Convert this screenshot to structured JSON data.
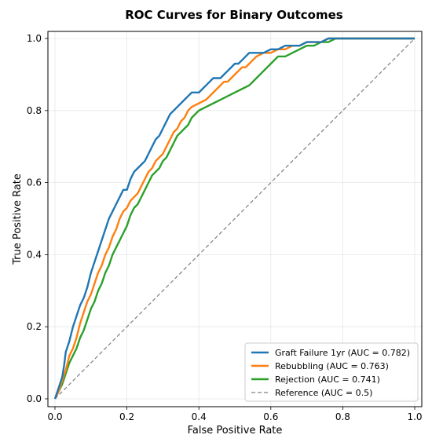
{
  "chart_data": {
    "type": "line",
    "title": "ROC Curves for Binary Outcomes",
    "xlabel": "False Positive Rate",
    "ylabel": "True Positive Rate",
    "xlim": [
      0.0,
      1.0
    ],
    "ylim": [
      0.0,
      1.0
    ],
    "xticks": [
      "0.0",
      "0.2",
      "0.4",
      "0.6",
      "0.8",
      "1.0"
    ],
    "yticks": [
      "0.0",
      "0.2",
      "0.4",
      "0.6",
      "0.8",
      "1.0"
    ],
    "grid": true,
    "legend_position": "lower-right",
    "series": [
      {
        "name": "Graft Failure 1yr (AUC = 0.782)",
        "color": "#1f77b4",
        "x": [
          0.0,
          0.01,
          0.02,
          0.025,
          0.03,
          0.04,
          0.05,
          0.06,
          0.07,
          0.08,
          0.09,
          0.1,
          0.11,
          0.12,
          0.13,
          0.14,
          0.15,
          0.16,
          0.17,
          0.18,
          0.19,
          0.2,
          0.21,
          0.22,
          0.23,
          0.24,
          0.25,
          0.26,
          0.27,
          0.28,
          0.29,
          0.3,
          0.31,
          0.32,
          0.33,
          0.34,
          0.35,
          0.36,
          0.37,
          0.38,
          0.4,
          0.41,
          0.42,
          0.43,
          0.44,
          0.45,
          0.46,
          0.47,
          0.48,
          0.49,
          0.5,
          0.51,
          0.52,
          0.53,
          0.54,
          0.56,
          0.58,
          0.6,
          0.62,
          0.64,
          0.66,
          0.68,
          0.7,
          0.72,
          0.74,
          0.76,
          0.78,
          0.8,
          1.0
        ],
        "y": [
          0.0,
          0.03,
          0.06,
          0.09,
          0.13,
          0.16,
          0.2,
          0.23,
          0.26,
          0.28,
          0.31,
          0.35,
          0.38,
          0.41,
          0.44,
          0.47,
          0.5,
          0.52,
          0.54,
          0.56,
          0.58,
          0.58,
          0.61,
          0.63,
          0.64,
          0.65,
          0.66,
          0.68,
          0.7,
          0.72,
          0.73,
          0.75,
          0.77,
          0.79,
          0.8,
          0.81,
          0.82,
          0.83,
          0.84,
          0.85,
          0.85,
          0.86,
          0.87,
          0.88,
          0.89,
          0.89,
          0.89,
          0.9,
          0.91,
          0.92,
          0.93,
          0.93,
          0.94,
          0.95,
          0.96,
          0.96,
          0.96,
          0.97,
          0.97,
          0.98,
          0.98,
          0.98,
          0.99,
          0.99,
          0.99,
          1.0,
          1.0,
          1.0,
          1.0
        ]
      },
      {
        "name": "Rebubbling (AUC = 0.763)",
        "color": "#ff7f0e",
        "x": [
          0.0,
          0.01,
          0.02,
          0.03,
          0.04,
          0.05,
          0.06,
          0.07,
          0.08,
          0.09,
          0.1,
          0.11,
          0.12,
          0.13,
          0.14,
          0.15,
          0.16,
          0.17,
          0.18,
          0.19,
          0.2,
          0.21,
          0.22,
          0.23,
          0.24,
          0.25,
          0.26,
          0.27,
          0.28,
          0.29,
          0.3,
          0.31,
          0.32,
          0.33,
          0.34,
          0.35,
          0.36,
          0.37,
          0.38,
          0.4,
          0.42,
          0.44,
          0.45,
          0.46,
          0.47,
          0.48,
          0.49,
          0.5,
          0.51,
          0.52,
          0.53,
          0.54,
          0.55,
          0.56,
          0.58,
          0.6,
          0.62,
          0.64,
          0.66,
          0.68,
          0.7,
          0.72,
          0.74,
          0.76,
          0.78,
          0.8,
          1.0
        ],
        "y": [
          0.0,
          0.02,
          0.05,
          0.08,
          0.12,
          0.14,
          0.17,
          0.21,
          0.24,
          0.27,
          0.29,
          0.32,
          0.35,
          0.37,
          0.4,
          0.42,
          0.45,
          0.47,
          0.5,
          0.52,
          0.53,
          0.55,
          0.56,
          0.57,
          0.59,
          0.61,
          0.63,
          0.64,
          0.66,
          0.67,
          0.68,
          0.7,
          0.72,
          0.74,
          0.75,
          0.77,
          0.78,
          0.8,
          0.81,
          0.82,
          0.83,
          0.85,
          0.86,
          0.87,
          0.88,
          0.88,
          0.89,
          0.9,
          0.91,
          0.92,
          0.92,
          0.93,
          0.94,
          0.95,
          0.96,
          0.96,
          0.97,
          0.97,
          0.98,
          0.98,
          0.99,
          0.99,
          0.99,
          1.0,
          1.0,
          1.0,
          1.0
        ]
      },
      {
        "name": "Rejection (AUC = 0.741)",
        "color": "#2ca02c",
        "x": [
          0.0,
          0.01,
          0.02,
          0.03,
          0.04,
          0.05,
          0.06,
          0.07,
          0.08,
          0.09,
          0.1,
          0.11,
          0.12,
          0.13,
          0.14,
          0.15,
          0.16,
          0.17,
          0.18,
          0.19,
          0.2,
          0.21,
          0.22,
          0.23,
          0.24,
          0.25,
          0.26,
          0.27,
          0.28,
          0.29,
          0.3,
          0.31,
          0.32,
          0.33,
          0.34,
          0.35,
          0.36,
          0.37,
          0.38,
          0.39,
          0.4,
          0.42,
          0.44,
          0.46,
          0.48,
          0.5,
          0.52,
          0.54,
          0.56,
          0.58,
          0.6,
          0.62,
          0.64,
          0.66,
          0.68,
          0.7,
          0.72,
          0.74,
          0.76,
          0.78,
          0.8,
          0.82,
          1.0
        ],
        "y": [
          0.0,
          0.02,
          0.04,
          0.07,
          0.1,
          0.12,
          0.14,
          0.17,
          0.19,
          0.22,
          0.25,
          0.27,
          0.3,
          0.32,
          0.35,
          0.37,
          0.4,
          0.42,
          0.44,
          0.46,
          0.48,
          0.51,
          0.53,
          0.54,
          0.56,
          0.58,
          0.6,
          0.62,
          0.63,
          0.64,
          0.66,
          0.67,
          0.69,
          0.71,
          0.73,
          0.74,
          0.75,
          0.76,
          0.78,
          0.79,
          0.8,
          0.81,
          0.82,
          0.83,
          0.84,
          0.85,
          0.86,
          0.87,
          0.89,
          0.91,
          0.93,
          0.95,
          0.95,
          0.96,
          0.97,
          0.98,
          0.98,
          0.99,
          0.99,
          1.0,
          1.0,
          1.0,
          1.0
        ]
      },
      {
        "name": "Reference (AUC = 0.5)",
        "color": "#808080",
        "dashed": true,
        "x": [
          0.0,
          1.0
        ],
        "y": [
          0.0,
          1.0
        ]
      }
    ]
  }
}
